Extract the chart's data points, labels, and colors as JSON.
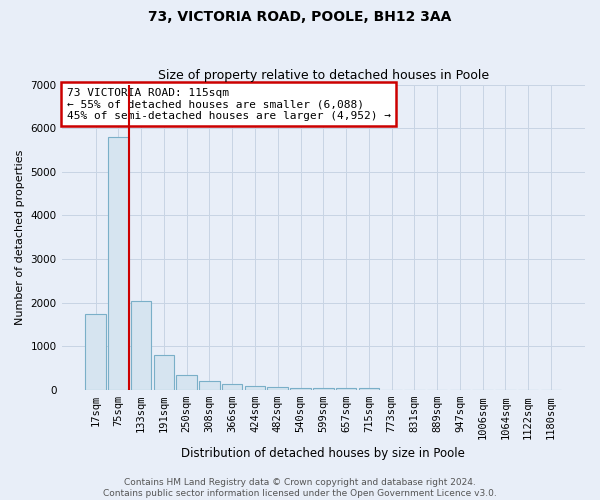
{
  "title": "73, VICTORIA ROAD, POOLE, BH12 3AA",
  "subtitle": "Size of property relative to detached houses in Poole",
  "xlabel": "Distribution of detached houses by size in Poole",
  "ylabel": "Number of detached properties",
  "categories": [
    "17sqm",
    "75sqm",
    "133sqm",
    "191sqm",
    "250sqm",
    "308sqm",
    "366sqm",
    "424sqm",
    "482sqm",
    "540sqm",
    "599sqm",
    "657sqm",
    "715sqm",
    "773sqm",
    "831sqm",
    "889sqm",
    "947sqm",
    "1006sqm",
    "1064sqm",
    "1122sqm",
    "1180sqm"
  ],
  "values": [
    1750,
    5800,
    2050,
    800,
    350,
    210,
    140,
    90,
    65,
    55,
    50,
    45,
    40,
    10,
    8,
    5,
    4,
    3,
    2,
    1,
    1
  ],
  "bar_color": "#d6e4f0",
  "bar_edge_color": "#7aafc8",
  "vline_color": "#cc0000",
  "vline_bar_index": 1,
  "annotation_text": "73 VICTORIA ROAD: 115sqm\n← 55% of detached houses are smaller (6,088)\n45% of semi-detached houses are larger (4,952) →",
  "annotation_box_facecolor": "white",
  "annotation_box_edgecolor": "#cc0000",
  "ylim": [
    0,
    7000
  ],
  "yticks": [
    0,
    1000,
    2000,
    3000,
    4000,
    5000,
    6000,
    7000
  ],
  "grid_color": "#c8d4e4",
  "background_color": "#e8eef8",
  "footnote": "Contains HM Land Registry data © Crown copyright and database right 2024.\nContains public sector information licensed under the Open Government Licence v3.0.",
  "title_fontsize": 10,
  "subtitle_fontsize": 9,
  "xlabel_fontsize": 8.5,
  "ylabel_fontsize": 8,
  "tick_fontsize": 7.5,
  "annotation_fontsize": 8,
  "footnote_fontsize": 6.5
}
